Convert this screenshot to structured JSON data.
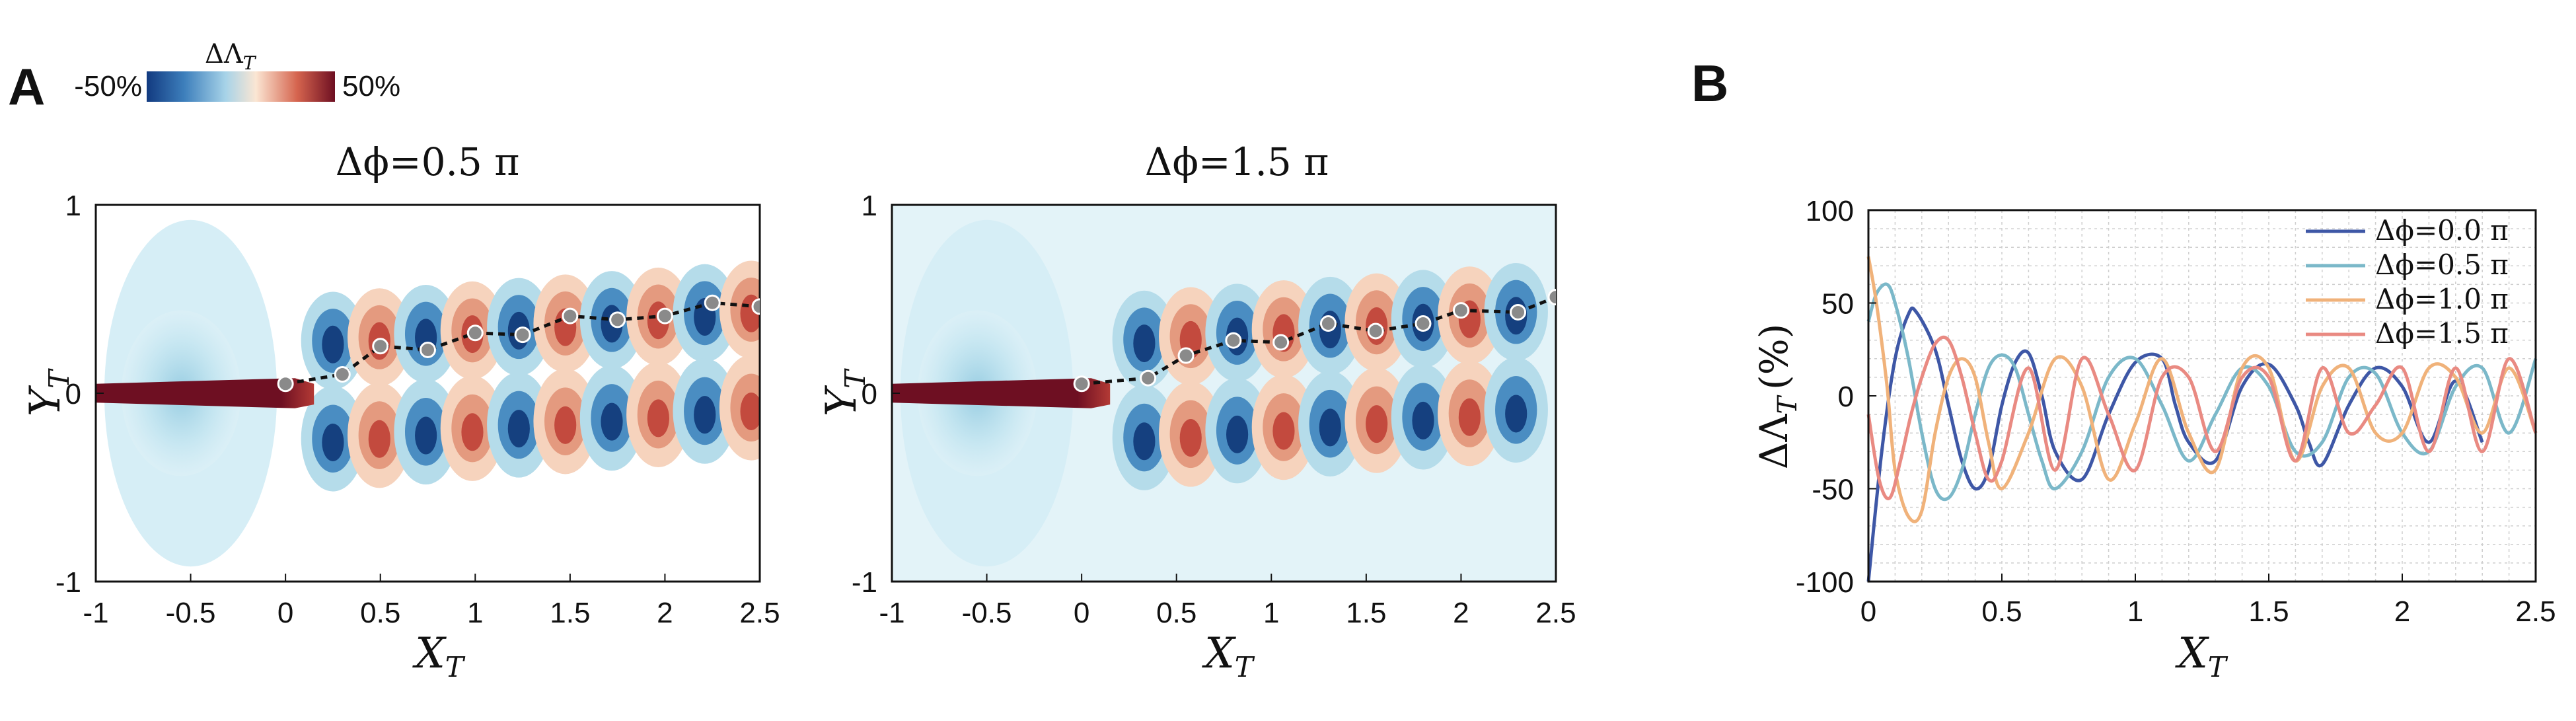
{
  "panel_a": {
    "letter": "A",
    "colorbar": {
      "label": "ΔΛ",
      "label_sub": "T",
      "min_label": "-50%",
      "max_label": "50%",
      "colors": [
        "#123a80",
        "#3d7fbc",
        "#a7d3e8",
        "#fbe6d3",
        "#d5644e",
        "#6e0f22"
      ]
    }
  },
  "panel_b": {
    "letter": "B"
  },
  "chart_data": [
    {
      "type": "heatmap",
      "title": "Δϕ=0.5 π",
      "xlabel": "X",
      "xlabel_sub": "T",
      "ylabel": "Y",
      "ylabel_sub": "T",
      "xlim": [
        -1,
        2.5
      ],
      "ylim": [
        -1,
        1
      ],
      "xticks": [
        "-1",
        "-0.5",
        "0",
        "0.5",
        "1",
        "1.5",
        "2",
        "2.5"
      ],
      "yticks": [
        "-1",
        "0",
        "1"
      ],
      "colorscale_range_percent": [
        -50,
        50
      ],
      "wake_markers": {
        "x": [
          0,
          0.3,
          0.5,
          0.75,
          1.0,
          1.25,
          1.5,
          1.75,
          2.0,
          2.25,
          2.5
        ],
        "y": [
          0.05,
          0.1,
          0.25,
          0.23,
          0.32,
          0.31,
          0.41,
          0.39,
          0.41,
          0.48,
          0.46
        ]
      }
    },
    {
      "type": "heatmap",
      "title": "Δϕ=1.5 π",
      "xlabel": "X",
      "xlabel_sub": "T",
      "ylabel": "Y",
      "ylabel_sub": "T",
      "xlim": [
        -1,
        2.5
      ],
      "ylim": [
        -1,
        1
      ],
      "xticks": [
        "-1",
        "-0.5",
        "0",
        "0.5",
        "1",
        "1.5",
        "2",
        "2.5"
      ],
      "yticks": [
        "-1",
        "0",
        "1"
      ],
      "colorscale_range_percent": [
        -50,
        50
      ],
      "wake_markers": {
        "x": [
          0,
          0.35,
          0.55,
          0.8,
          1.05,
          1.3,
          1.55,
          1.8,
          2.0,
          2.3,
          2.5
        ],
        "y": [
          0.05,
          0.08,
          0.2,
          0.28,
          0.27,
          0.37,
          0.33,
          0.37,
          0.44,
          0.43,
          0.51
        ]
      }
    },
    {
      "type": "line",
      "xlabel": "X",
      "xlabel_sub": "T",
      "ylabel": "ΔΛ",
      "ylabel_sub": "T",
      "ylabel_unit": "(%)",
      "xlim": [
        0,
        2.5
      ],
      "ylim": [
        -100,
        100
      ],
      "xticks": [
        "0",
        "0.5",
        "1",
        "1.5",
        "2",
        "2.5"
      ],
      "yticks": [
        "100",
        "50",
        "0",
        "-50",
        "-100"
      ],
      "grid": true,
      "legend": "top-right",
      "series": [
        {
          "name": "Δϕ=0.0 π",
          "color": "#3e57a6",
          "x": [
            0,
            0.05,
            0.1,
            0.15,
            0.18,
            0.25,
            0.3,
            0.35,
            0.4,
            0.45,
            0.5,
            0.55,
            0.6,
            0.65,
            0.7,
            0.8,
            0.9,
            1.0,
            1.1,
            1.15,
            1.2,
            1.3,
            1.4,
            1.5,
            1.6,
            1.65,
            1.7,
            1.8,
            1.9,
            2.0,
            2.1,
            2.2,
            2.3
          ],
          "y": [
            -100,
            -30,
            20,
            44,
            45,
            25,
            -5,
            -35,
            -50,
            -40,
            -5,
            18,
            23,
            0,
            -30,
            -45,
            -10,
            18,
            20,
            -5,
            -25,
            -35,
            5,
            17,
            -5,
            -25,
            -37,
            -5,
            15,
            5,
            -25,
            8,
            -25
          ]
        },
        {
          "name": "Δϕ=0.5 π",
          "color": "#7bb8c9",
          "x": [
            0,
            0.03,
            0.07,
            0.1,
            0.15,
            0.2,
            0.25,
            0.3,
            0.35,
            0.4,
            0.45,
            0.5,
            0.55,
            0.6,
            0.65,
            0.7,
            0.8,
            0.9,
            1.0,
            1.1,
            1.2,
            1.3,
            1.4,
            1.5,
            1.6,
            1.7,
            1.8,
            1.9,
            2.0,
            2.1,
            2.2,
            2.3,
            2.4,
            2.5
          ],
          "y": [
            40,
            55,
            60,
            50,
            20,
            -20,
            -50,
            -55,
            -40,
            -10,
            15,
            22,
            15,
            -10,
            -35,
            -50,
            -30,
            10,
            20,
            -5,
            -35,
            -10,
            15,
            5,
            -30,
            -25,
            10,
            12,
            -20,
            -30,
            5,
            15,
            -20,
            20
          ]
        },
        {
          "name": "Δϕ=1.0 π",
          "color": "#f0b27a",
          "x": [
            0,
            0.03,
            0.07,
            0.1,
            0.15,
            0.2,
            0.25,
            0.3,
            0.35,
            0.4,
            0.45,
            0.5,
            0.6,
            0.7,
            0.8,
            0.9,
            1.0,
            1.1,
            1.2,
            1.3,
            1.4,
            1.5,
            1.6,
            1.7,
            1.8,
            1.9,
            2.0,
            2.1,
            2.2,
            2.3,
            2.4,
            2.5
          ],
          "y": [
            75,
            50,
            5,
            -40,
            -65,
            -62,
            -20,
            10,
            20,
            10,
            -25,
            -50,
            -20,
            20,
            5,
            -45,
            -15,
            20,
            -20,
            -40,
            15,
            15,
            -35,
            5,
            15,
            -20,
            -20,
            15,
            10,
            -20,
            15,
            -20
          ]
        },
        {
          "name": "Δϕ=1.5 π",
          "color": "#e98a82",
          "x": [
            0,
            0.04,
            0.08,
            0.12,
            0.16,
            0.2,
            0.25,
            0.3,
            0.35,
            0.4,
            0.45,
            0.5,
            0.6,
            0.7,
            0.8,
            0.9,
            1.0,
            1.1,
            1.2,
            1.3,
            1.4,
            1.5,
            1.6,
            1.7,
            1.8,
            1.9,
            2.0,
            2.1,
            2.2,
            2.3,
            2.4,
            2.5
          ],
          "y": [
            -10,
            -45,
            -55,
            -35,
            -10,
            10,
            28,
            30,
            10,
            -20,
            -45,
            -35,
            15,
            -40,
            20,
            -10,
            -40,
            10,
            10,
            -30,
            10,
            10,
            -35,
            15,
            -20,
            -5,
            15,
            -30,
            15,
            -30,
            20,
            -20
          ]
        }
      ]
    }
  ]
}
